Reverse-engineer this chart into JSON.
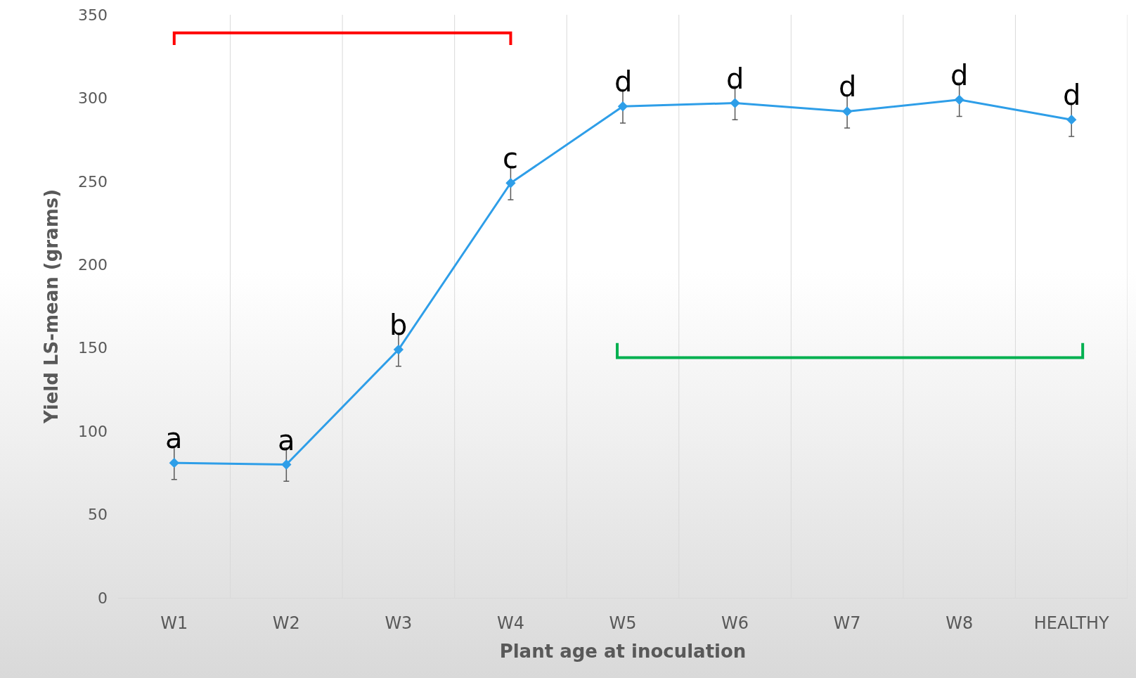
{
  "chart_data": {
    "type": "line",
    "xlabel": "Plant age at inoculation",
    "ylabel": "Yield LS-mean (grams)",
    "categories": [
      "W1",
      "W2",
      "W3",
      "W4",
      "W5",
      "W6",
      "W7",
      "W8",
      "HEALTHY"
    ],
    "series": [
      {
        "color": "#2e9ee8",
        "values": [
          81,
          80,
          149,
          249,
          295,
          297,
          292,
          299,
          287
        ],
        "errors": [
          10,
          10,
          10,
          10,
          10,
          10,
          10,
          10,
          10
        ]
      }
    ],
    "ylim": [
      0,
      350
    ],
    "yticks": [
      0,
      50,
      100,
      150,
      200,
      250,
      300,
      350
    ],
    "grid": "x",
    "marker": "diamond",
    "line_style": "solid",
    "annotations": [
      {
        "text": "a",
        "x": "W1",
        "y": 81
      },
      {
        "text": "a",
        "x": "W2",
        "y": 80
      },
      {
        "text": "b",
        "x": "W3",
        "y": 149
      },
      {
        "text": "c",
        "x": "W4",
        "y": 249
      },
      {
        "text": "d",
        "x": "W5",
        "y": 295
      },
      {
        "text": "d",
        "x": "W6",
        "y": 297
      },
      {
        "text": "d",
        "x": "W7",
        "y": 292
      },
      {
        "text": "d",
        "x": "W8",
        "y": 299
      },
      {
        "text": "d",
        "x": "HEALTHY",
        "y": 287
      }
    ]
  }
}
